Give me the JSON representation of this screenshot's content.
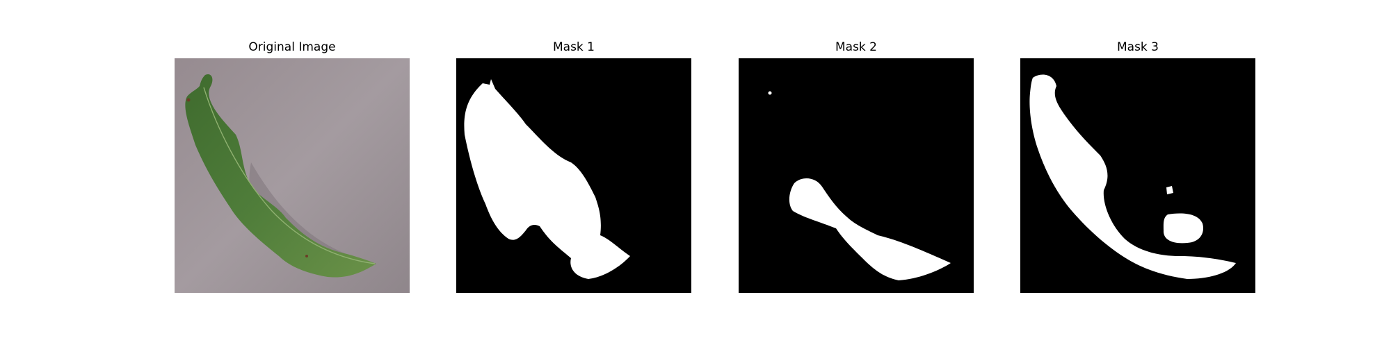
{
  "figure": {
    "panels": [
      {
        "title": "Original Image",
        "kind": "photo",
        "subject": "green leaf on grey surface"
      },
      {
        "title": "Mask 1",
        "kind": "mask"
      },
      {
        "title": "Mask 2",
        "kind": "mask"
      },
      {
        "title": "Mask 3",
        "kind": "mask"
      }
    ],
    "colors": {
      "background": "#ffffff",
      "mask_bg": "#000000",
      "mask_fg": "#ffffff",
      "leaf": "#4f7d3a",
      "surface": "#9a9094"
    }
  }
}
